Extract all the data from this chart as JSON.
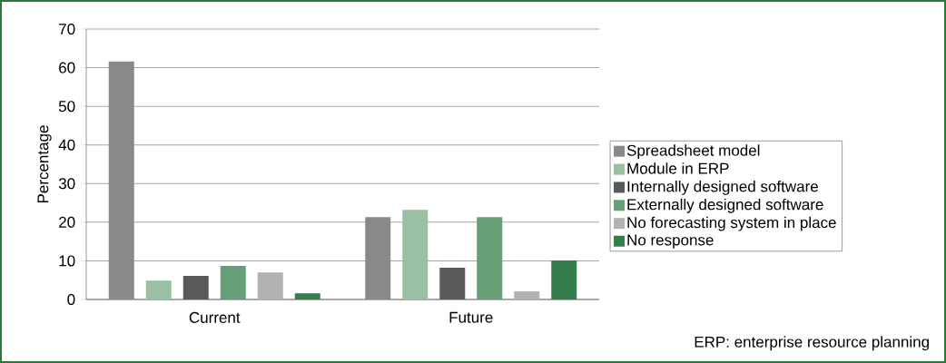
{
  "chart_data": {
    "type": "bar",
    "ylabel": "Percentage",
    "categories": [
      "Current",
      "Future"
    ],
    "series": [
      {
        "name": "Spreadsheet model",
        "color": "#88898b",
        "values": [
          61.6,
          21.3
        ]
      },
      {
        "name": "Module in ERP",
        "color": "#99c0a2",
        "values": [
          4.9,
          23.2
        ]
      },
      {
        "name": "Internally designed software",
        "color": "#58595b",
        "values": [
          6.1,
          8.2
        ]
      },
      {
        "name": "Externally designed software",
        "color": "#669e77",
        "values": [
          8.7,
          21.3
        ]
      },
      {
        "name": "No forecasting system in place",
        "color": "#b1b2b3",
        "values": [
          7.0,
          2.1
        ]
      },
      {
        "name": "No response",
        "color": "#347e4d",
        "values": [
          1.6,
          10.1
        ]
      }
    ],
    "ylim": [
      0,
      70
    ],
    "yticks": [
      0,
      10,
      20,
      30,
      40,
      50,
      60,
      70
    ],
    "grid": "y",
    "legend": "right",
    "annotations": [
      "ERP: enterprise resource planning"
    ]
  }
}
